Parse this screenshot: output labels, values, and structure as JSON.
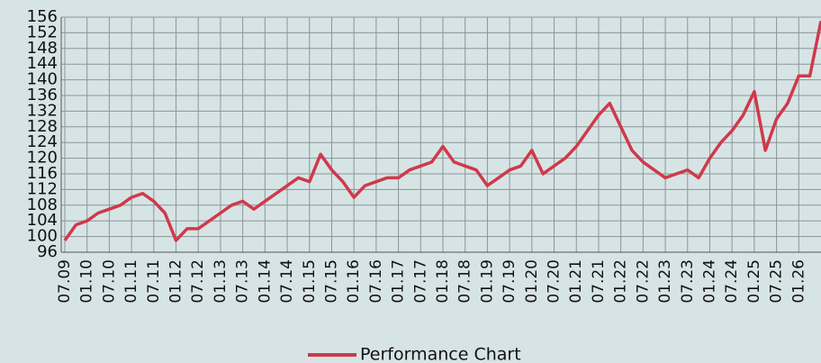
{
  "chart_data": {
    "type": "line",
    "categories": [
      "07.09",
      null,
      "01.10",
      null,
      "07.10",
      null,
      "01.11",
      null,
      "07.11",
      null,
      "01.12",
      null,
      "07.12",
      null,
      "01.13",
      null,
      "07.13",
      null,
      "01.14",
      null,
      "07.14",
      null,
      "01.15",
      null,
      "07.15",
      null,
      "01.16",
      null,
      "07.16",
      null,
      "01.17",
      null,
      "07.17",
      null,
      "01.18",
      null,
      "07.18",
      null,
      "01.19",
      null,
      "07.19",
      null,
      "01.20",
      null,
      "07.20",
      null,
      "01.21",
      null,
      "07.21",
      null,
      "01.22",
      null,
      "07.22",
      null,
      "01.23",
      null,
      "07.23",
      null,
      "01.24",
      null,
      "07.24",
      null,
      "01.25",
      null,
      "07.25",
      null,
      "01.26",
      null,
      null
    ],
    "series": [
      {
        "name": "Performance Chart",
        "color": "#d0394a",
        "values": [
          99,
          103,
          104,
          106,
          107,
          108,
          110,
          111,
          109,
          106,
          99,
          102,
          102,
          104,
          106,
          108,
          109,
          107,
          109,
          111,
          113,
          115,
          114,
          121,
          117,
          114,
          110,
          113,
          114,
          115,
          115,
          117,
          118,
          119,
          123,
          119,
          118,
          117,
          113,
          115,
          117,
          118,
          122,
          116,
          118,
          120,
          123,
          127,
          131,
          134,
          128,
          122,
          119,
          117,
          115,
          116,
          117,
          115,
          120,
          124,
          127,
          131,
          137,
          122,
          130,
          134,
          141,
          141,
          155
        ]
      }
    ],
    "ylim": [
      96,
      156
    ],
    "yticks": [
      96,
      100,
      104,
      108,
      112,
      116,
      120,
      124,
      128,
      132,
      136,
      140,
      144,
      148,
      152,
      156
    ],
    "grid": true,
    "legend": "bottom"
  }
}
